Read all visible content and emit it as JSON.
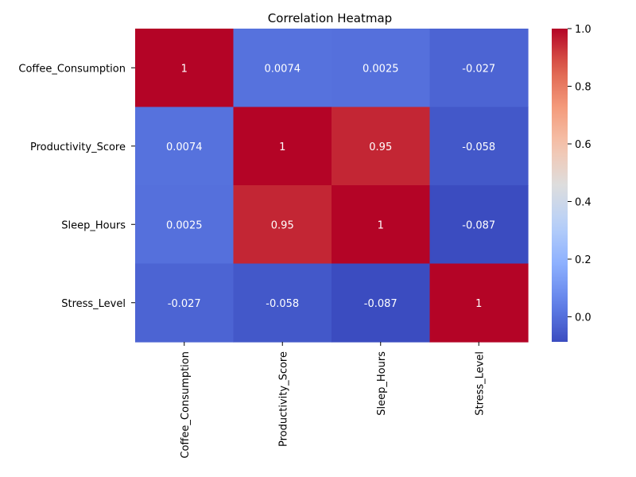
{
  "chart_data": {
    "type": "heatmap",
    "title": "Correlation Heatmap",
    "xlabel": "",
    "ylabel": "",
    "x_categories": [
      "Coffee_Consumption",
      "Productivity_Score",
      "Sleep_Hours",
      "Stress_Level"
    ],
    "y_categories": [
      "Coffee_Consumption",
      "Productivity_Score",
      "Sleep_Hours",
      "Stress_Level"
    ],
    "values": [
      [
        1,
        0.0074,
        0.0025,
        -0.027
      ],
      [
        0.0074,
        1,
        0.95,
        -0.058
      ],
      [
        0.0025,
        0.95,
        1,
        -0.087
      ],
      [
        -0.027,
        -0.058,
        -0.087,
        1
      ]
    ],
    "annotations": [
      [
        "1",
        "0.0074",
        "0.0025",
        "-0.027"
      ],
      [
        "0.0074",
        "1",
        "0.95",
        "-0.058"
      ],
      [
        "0.0025",
        "0.95",
        "1",
        "-0.087"
      ],
      [
        "-0.027",
        "-0.058",
        "-0.087",
        "1"
      ]
    ],
    "colormap": "coolwarm",
    "colorbar": {
      "vmin": -0.087,
      "vmax": 1.0,
      "ticks": [
        1.0,
        0.8,
        0.6,
        0.4,
        0.2,
        0.0
      ],
      "tick_labels": [
        "1.0",
        "0.8",
        "0.6",
        "0.4",
        "0.2",
        "0.0"
      ],
      "placement": "right"
    },
    "grid": false
  }
}
